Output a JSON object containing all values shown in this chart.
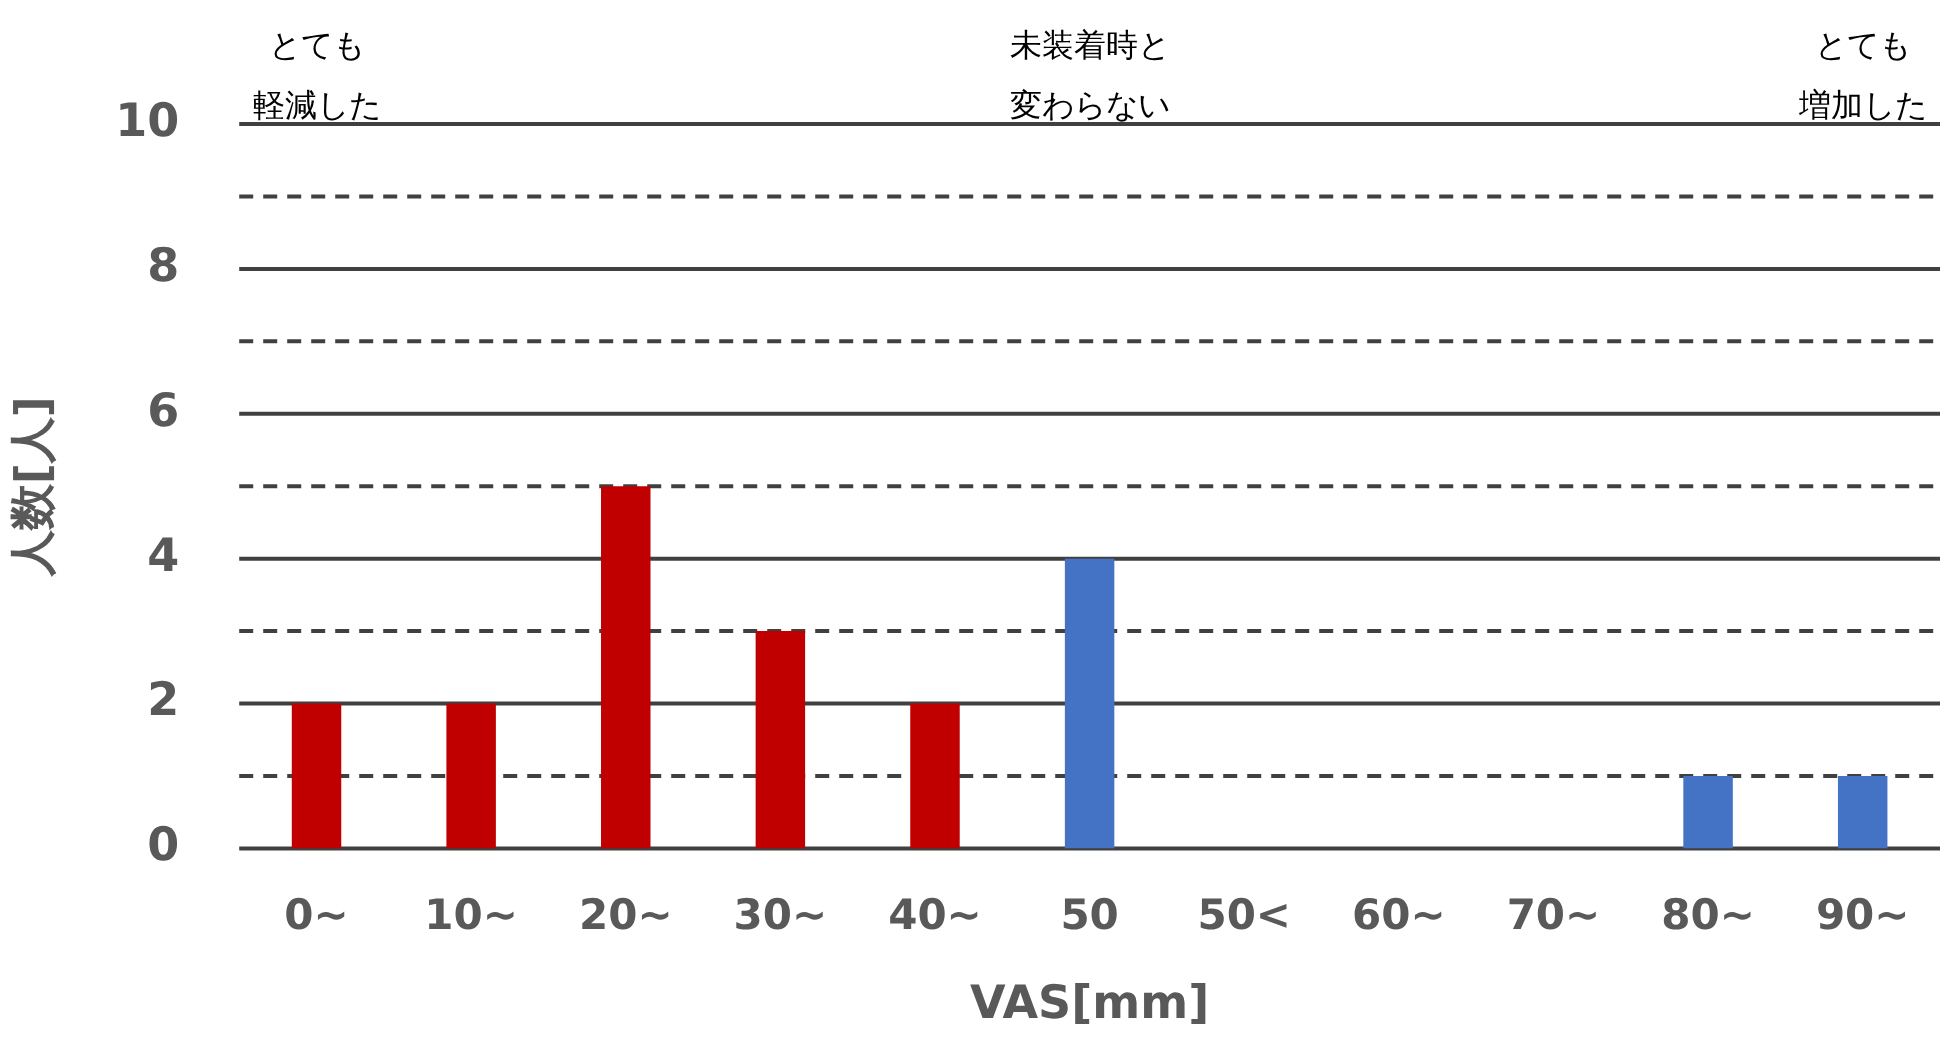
{
  "chart_data": {
    "type": "bar",
    "xlabel": "VAS[mm]",
    "ylabel": "人数[人]",
    "categories": [
      "0~",
      "10~",
      "20~",
      "30~",
      "40~",
      "50",
      "50<",
      "60~",
      "70~",
      "80~",
      "90~"
    ],
    "values": [
      2,
      2,
      5,
      3,
      2,
      4,
      0,
      0,
      0,
      1,
      1
    ],
    "colors": [
      "#c00000",
      "#c00000",
      "#c00000",
      "#c00000",
      "#c00000",
      "#4472c4",
      "#4472c4",
      "#4472c4",
      "#4472c4",
      "#4472c4",
      "#4472c4"
    ],
    "ylim": [
      0,
      10
    ],
    "yticks": [
      0,
      {
        "value": 1,
        "label": null
      },
      2,
      {
        "value": 3,
        "label": null
      },
      4,
      {
        "value": 5,
        "label": null
      },
      6,
      {
        "value": 7,
        "label": null
      },
      8,
      {
        "value": 9,
        "label": null
      },
      10
    ],
    "grid": "y",
    "legend": false,
    "annotations": [
      "とても軽減した",
      "未装着時と変わらない",
      "とても増加した"
    ]
  }
}
